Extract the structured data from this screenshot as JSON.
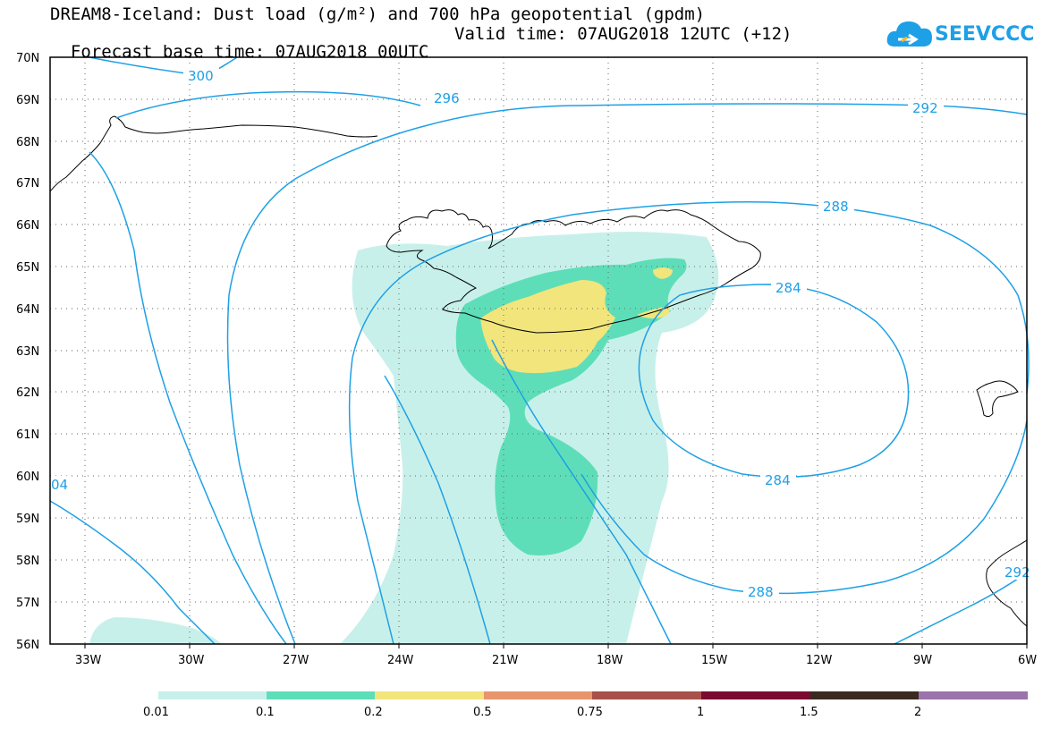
{
  "header": {
    "title_line1": "DREAM8-Iceland: Dust load (g/m²) and 700 hPa geopotential (gpdm)",
    "title_line2_left": "Forecast base time: 07AUG2018 00UTC",
    "title_line2_right": "Valid time: 07AUG2018 12UTC (+12)",
    "logo_text": "SEEVCCC"
  },
  "map": {
    "latitude_labels": [
      "70N",
      "69N",
      "68N",
      "67N",
      "66N",
      "65N",
      "64N",
      "63N",
      "62N",
      "61N",
      "60N",
      "59N",
      "58N",
      "57N",
      "56N"
    ],
    "longitude_labels": [
      "33W",
      "30W",
      "27W",
      "24W",
      "21W",
      "18W",
      "15W",
      "12W",
      "9W",
      "6W"
    ],
    "contour_color": "#1ea0e6",
    "contour_labels": {
      "c300": "300",
      "c296": "296",
      "c292": "292",
      "c288_top": "288",
      "c284_top": "284",
      "c284_bottom": "284",
      "c288_bottom": "288",
      "c304": "04",
      "c292_right": "292"
    }
  },
  "legend": {
    "colors": [
      "#c8f0ea",
      "#5edeb8",
      "#f2e57c",
      "#e8956e",
      "#a8504a",
      "#7a0a30",
      "#3a2a20",
      "#9a74aa"
    ],
    "labels": [
      "0.01",
      "0.1",
      "0.2",
      "0.5",
      "0.75",
      "1",
      "1.5",
      "2"
    ]
  }
}
